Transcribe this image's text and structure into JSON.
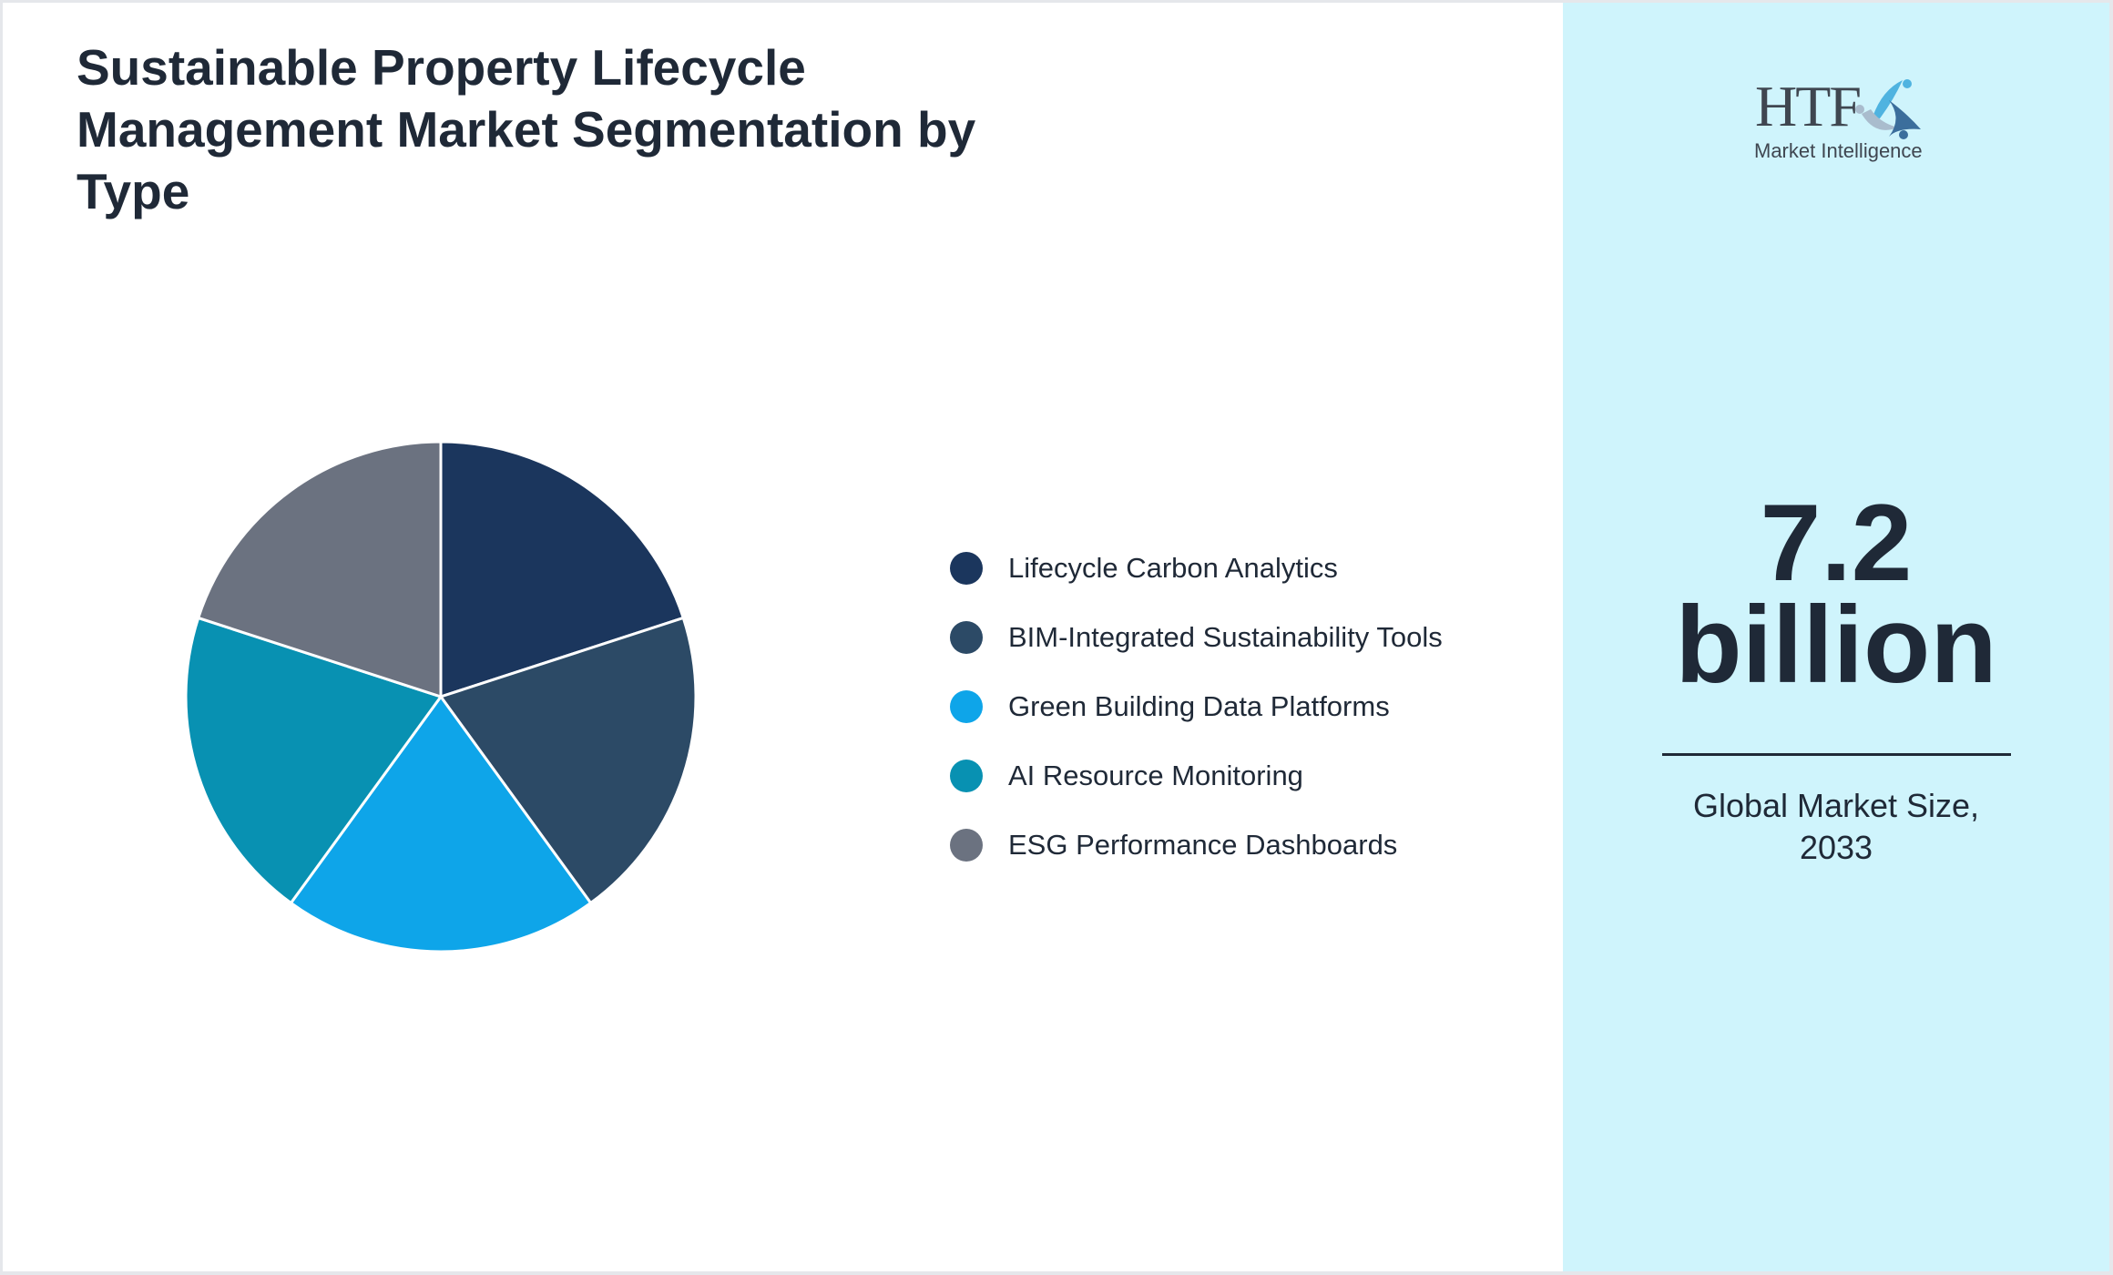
{
  "chart_data": {
    "type": "pie",
    "title": "Sustainable Property Lifecycle Management Market Segmentation by Type",
    "categories": [
      "Lifecycle Carbon Analytics",
      "BIM-Integrated Sustainability Tools",
      "Green Building Data Platforms",
      "AI Resource Monitoring",
      "ESG Performance Dashboards"
    ],
    "values": [
      20,
      20,
      20,
      20,
      20
    ],
    "colors": [
      "#1b365d",
      "#2c4a66",
      "#0ea5e9",
      "#0891b2",
      "#6b7280"
    ],
    "legend": "right"
  },
  "side": {
    "logo": {
      "mark": "HTF",
      "tagline": "Market Intelligence"
    },
    "value_line1": "7.2",
    "value_line2": "billion",
    "caption_line1": "Global Market Size,",
    "caption_line2": "2033"
  }
}
